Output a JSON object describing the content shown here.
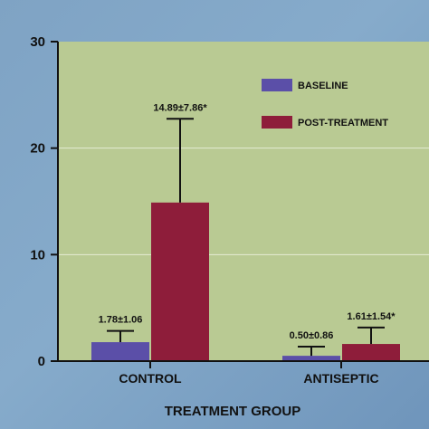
{
  "chart_data": {
    "type": "bar",
    "xlabel": "TREATMENT GROUP",
    "ylabel": "",
    "ylim": [
      0,
      30
    ],
    "yticks": [
      0,
      10,
      20,
      30
    ],
    "grid": true,
    "legend_position": "top-right",
    "categories": [
      "CONTROL",
      "ANTISEPTIC"
    ],
    "series": [
      {
        "name": "BASELINE",
        "color": "#5b4fa8",
        "values": [
          1.78,
          0.5
        ],
        "errors": [
          1.06,
          0.86
        ],
        "labels": [
          "1.78±1.06",
          "0.50±0.86"
        ]
      },
      {
        "name": "POST-TREATMENT",
        "color": "#8e1d3a",
        "values": [
          14.89,
          1.61
        ],
        "errors": [
          7.86,
          1.54
        ],
        "labels": [
          "14.89±7.86*",
          "1.61±1.54*"
        ]
      }
    ],
    "plot_background": "#b9ca93"
  }
}
